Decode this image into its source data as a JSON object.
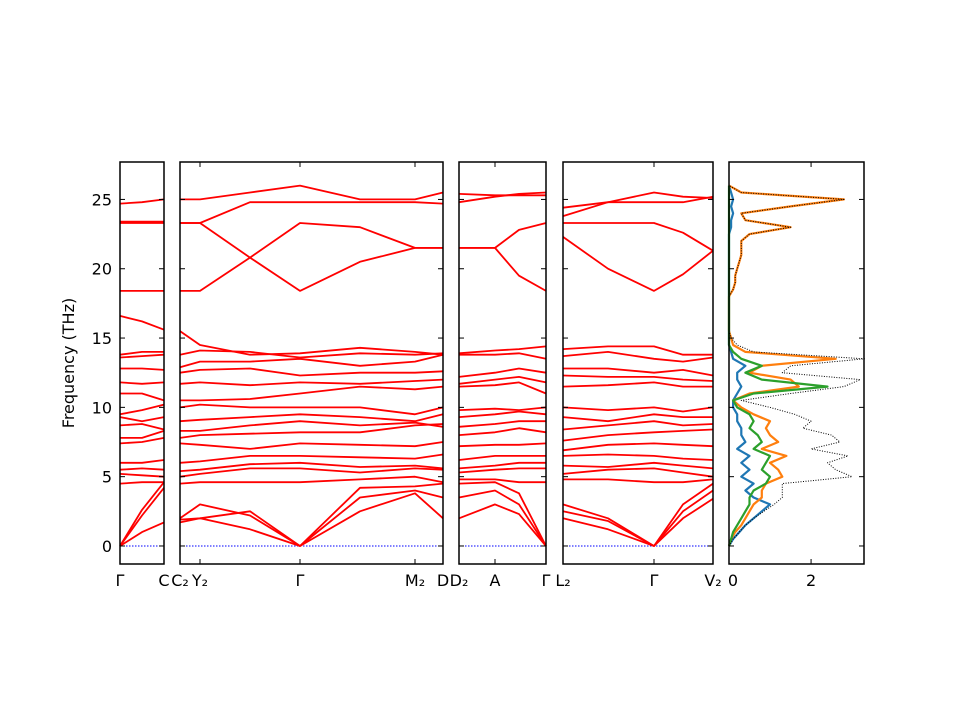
{
  "chart_data": {
    "type": "line",
    "title": "",
    "ylabel": "Frequency (THz)",
    "ylim": [
      -1.3,
      27.7
    ],
    "yticks": [
      0,
      5,
      10,
      15,
      20,
      25
    ],
    "yticklabels": [
      "0",
      "5",
      "10",
      "15",
      "20",
      "25"
    ],
    "band_color": "#ff0000",
    "zero_line_color": "#0000ff",
    "band_panels": [
      {
        "name": "gamma-c",
        "kticks": [
          0,
          0.44
        ],
        "klabels": [
          "Γ",
          "C"
        ],
        "k": [
          0,
          0.22,
          0.44
        ],
        "bands": [
          [
            0,
            1.0,
            1.7
          ],
          [
            0,
            2.2,
            4.2
          ],
          [
            0,
            2.6,
            4.6
          ],
          [
            4.5,
            4.6,
            4.6
          ],
          [
            5.2,
            5.1,
            5.0
          ],
          [
            5.5,
            5.6,
            5.5
          ],
          [
            6.0,
            6.0,
            6.2
          ],
          [
            7.4,
            7.5,
            7.8
          ],
          [
            7.8,
            7.8,
            8.3
          ],
          [
            8.7,
            8.8,
            8.4
          ],
          [
            9.3,
            9.0,
            9.3
          ],
          [
            9.5,
            9.8,
            10.2
          ],
          [
            11.0,
            11.0,
            10.5
          ],
          [
            11.8,
            11.7,
            11.8
          ],
          [
            12.8,
            12.8,
            12.7
          ],
          [
            13.6,
            13.7,
            13.8
          ],
          [
            13.8,
            14.0,
            14.0
          ],
          [
            16.6,
            16.2,
            15.6
          ],
          [
            18.4,
            18.4,
            18.4
          ],
          [
            23.3,
            23.3,
            23.3
          ],
          [
            23.4,
            23.4,
            23.4
          ],
          [
            24.7,
            24.8,
            25.0
          ]
        ]
      },
      {
        "name": "c2-y2-gamma-m2-d",
        "kticks": [
          0,
          0.2,
          1.2,
          2.35,
          2.63
        ],
        "klabels": [
          "C₂",
          "Y₂",
          "Γ",
          "M₂",
          "D"
        ],
        "k": [
          0,
          0.2,
          0.7,
          1.2,
          1.8,
          2.35,
          2.63
        ],
        "bands": [
          [
            1.7,
            2.0,
            1.2,
            0,
            2.5,
            3.8,
            2.0
          ],
          [
            1.9,
            2.0,
            2.5,
            0,
            3.5,
            4.0,
            3.5
          ],
          [
            2.0,
            3.0,
            2.2,
            0,
            4.2,
            4.3,
            4.5
          ],
          [
            4.5,
            4.6,
            4.6,
            4.6,
            4.8,
            5.0,
            4.6
          ],
          [
            5.0,
            5.2,
            5.6,
            5.6,
            5.3,
            5.6,
            5.5
          ],
          [
            5.4,
            5.5,
            5.9,
            6.0,
            5.7,
            5.8,
            5.6
          ],
          [
            6.0,
            6.1,
            6.5,
            6.5,
            6.4,
            6.3,
            6.6
          ],
          [
            7.4,
            7.3,
            7.0,
            7.4,
            7.3,
            7.2,
            7.5
          ],
          [
            7.8,
            8.0,
            8.1,
            8.2,
            8.2,
            8.7,
            8.8
          ],
          [
            8.3,
            8.3,
            8.7,
            9.0,
            8.7,
            8.9,
            8.6
          ],
          [
            9.0,
            9.1,
            9.3,
            9.5,
            9.3,
            9.0,
            9.5
          ],
          [
            10.0,
            10.2,
            10.0,
            10.0,
            10.0,
            9.5,
            10.0
          ],
          [
            10.5,
            10.5,
            10.6,
            11.0,
            11.5,
            11.3,
            11.5
          ],
          [
            11.7,
            11.8,
            11.6,
            11.8,
            11.7,
            11.9,
            12.0
          ],
          [
            12.5,
            12.7,
            12.8,
            12.3,
            12.5,
            12.5,
            12.6
          ],
          [
            12.9,
            13.3,
            13.3,
            13.5,
            13.0,
            13.3,
            13.8
          ],
          [
            13.8,
            14.1,
            14.0,
            13.6,
            13.9,
            13.8,
            13.9
          ],
          [
            15.5,
            14.5,
            13.8,
            13.9,
            14.3,
            14.0,
            13.8
          ],
          [
            18.4,
            18.4,
            20.8,
            23.3,
            23.0,
            21.5,
            21.5
          ],
          [
            23.3,
            23.3,
            20.8,
            18.4,
            20.5,
            21.5,
            21.5
          ],
          [
            23.3,
            23.3,
            24.8,
            24.8,
            24.8,
            24.8,
            24.7
          ],
          [
            25.0,
            25.0,
            25.5,
            26.0,
            25.0,
            25.0,
            25.5
          ]
        ]
      },
      {
        "name": "d2-a-gamma",
        "kticks": [
          0,
          0.36,
          0.87
        ],
        "klabels": [
          "D₂",
          "A",
          "Γ"
        ],
        "k": [
          0,
          0.36,
          0.6,
          0.87
        ],
        "bands": [
          [
            2.0,
            3.0,
            2.3,
            0
          ],
          [
            3.5,
            4.0,
            3.0,
            0
          ],
          [
            4.5,
            4.6,
            3.8,
            0
          ],
          [
            4.8,
            4.8,
            4.6,
            4.6
          ],
          [
            5.3,
            5.5,
            5.6,
            5.6
          ],
          [
            5.6,
            5.8,
            6.0,
            6.0
          ],
          [
            6.2,
            6.5,
            6.5,
            6.5
          ],
          [
            7.2,
            7.3,
            7.3,
            7.4
          ],
          [
            8.0,
            8.2,
            8.5,
            8.2
          ],
          [
            8.6,
            8.8,
            9.0,
            9.0
          ],
          [
            9.3,
            9.5,
            9.7,
            9.5
          ],
          [
            9.8,
            9.9,
            9.8,
            10.0
          ],
          [
            11.5,
            11.6,
            11.8,
            11.0
          ],
          [
            11.7,
            12.0,
            12.2,
            11.8
          ],
          [
            12.2,
            12.5,
            12.8,
            12.5
          ],
          [
            13.8,
            13.8,
            13.9,
            13.5
          ],
          [
            13.9,
            14.1,
            14.2,
            14.4
          ],
          [
            21.5,
            21.5,
            19.5,
            18.4
          ],
          [
            21.5,
            21.5,
            22.8,
            23.3
          ],
          [
            24.8,
            25.2,
            25.4,
            25.5
          ],
          [
            25.4,
            25.3,
            25.3,
            25.3
          ]
        ]
      },
      {
        "name": "l2-gamma-v2",
        "kticks": [
          0,
          0.91,
          1.5
        ],
        "klabels": [
          "L₂",
          "Γ",
          "V₂"
        ],
        "k": [
          0,
          0.45,
          0.91,
          1.2,
          1.5
        ],
        "bands": [
          [
            2.0,
            1.2,
            0,
            2.0,
            3.4
          ],
          [
            2.5,
            1.8,
            0,
            2.5,
            4.0
          ],
          [
            3.0,
            2.0,
            0,
            3.0,
            4.5
          ],
          [
            4.8,
            4.8,
            4.6,
            4.6,
            4.8
          ],
          [
            5.2,
            5.5,
            5.6,
            5.3,
            5.0
          ],
          [
            5.8,
            5.7,
            6.0,
            5.8,
            5.6
          ],
          [
            6.5,
            6.6,
            6.5,
            6.3,
            6.2
          ],
          [
            6.9,
            7.3,
            7.4,
            7.3,
            7.2
          ],
          [
            7.6,
            8.0,
            8.2,
            8.3,
            8.4
          ],
          [
            8.4,
            8.7,
            9.0,
            8.7,
            8.8
          ],
          [
            9.3,
            9.0,
            9.5,
            9.3,
            9.3
          ],
          [
            10.0,
            9.8,
            10.0,
            9.7,
            10.0
          ],
          [
            11.5,
            11.6,
            11.8,
            11.5,
            11.5
          ],
          [
            12.3,
            12.2,
            12.2,
            12.0,
            11.9
          ],
          [
            12.8,
            12.8,
            12.5,
            12.7,
            12.3
          ],
          [
            13.7,
            14.0,
            13.5,
            13.3,
            13.6
          ],
          [
            14.2,
            14.4,
            14.4,
            13.8,
            13.8
          ],
          [
            22.3,
            20.0,
            18.4,
            19.6,
            21.3
          ],
          [
            23.3,
            23.3,
            23.3,
            22.6,
            21.3
          ],
          [
            23.8,
            24.8,
            25.5,
            25.2,
            25.1
          ],
          [
            24.4,
            24.8,
            24.8,
            24.8,
            25.2
          ]
        ]
      }
    ],
    "dos": {
      "xlim": [
        0,
        3.29
      ],
      "xticks": [
        0,
        2
      ],
      "xticklabels": [
        "0",
        "2"
      ],
      "freq_start": 0,
      "freq_step": 0.5,
      "series": [
        {
          "name": "total",
          "color": "#000000",
          "style": "dotted",
          "values": [
            0,
            0.1,
            0.25,
            0.4,
            0.6,
            0.85,
            1.1,
            1.3,
            1.3,
            1.3,
            3.0,
            2.6,
            2.4,
            2.9,
            2.0,
            2.7,
            2.5,
            1.8,
            2.0,
            1.6,
            1.0,
            0.3,
            1.5,
            2.8,
            3.2,
            1.3,
            1.5,
            3.3,
            0.6,
            0.2,
            0.05,
            0,
            0,
            0,
            0,
            0,
            0,
            0.1,
            0.15,
            0.15,
            0.2,
            0.25,
            0.3,
            0.3,
            0.3,
            0.5,
            1.5,
            0.4,
            0.3,
            1.5,
            2.8,
            0.3,
            0
          ]
        },
        {
          "name": "blue",
          "color": "#1f77b4",
          "style": "solid",
          "values": [
            0,
            0.1,
            0.25,
            0.4,
            0.6,
            0.8,
            1.0,
            0.6,
            0.4,
            0.6,
            0.3,
            0.5,
            0.3,
            0.5,
            0.2,
            0.4,
            0.3,
            0.3,
            0.2,
            0.2,
            0.1,
            0.1,
            0.2,
            0.3,
            0.2,
            0.2,
            0.4,
            0.1,
            0.05,
            0,
            0,
            0,
            0,
            0,
            0,
            0,
            0,
            0,
            0,
            0,
            0,
            0,
            0,
            0,
            0,
            0,
            0.05,
            0.05,
            0.1,
            0.05,
            0.1,
            0.05,
            0
          ]
        },
        {
          "name": "orange",
          "color": "#ff7f0e",
          "style": "solid",
          "values": [
            0,
            0.05,
            0.15,
            0.3,
            0.4,
            0.5,
            0.6,
            0.8,
            0.8,
            0.9,
            1.3,
            1.2,
            1.0,
            1.4,
            0.8,
            1.2,
            1.0,
            0.9,
            1.0,
            0.6,
            0.3,
            0.1,
            0.5,
            1.7,
            1.5,
            0.5,
            0.8,
            2.6,
            0.4,
            0.1,
            0.05,
            0,
            0,
            0,
            0,
            0,
            0,
            0.1,
            0.15,
            0.15,
            0.2,
            0.25,
            0.3,
            0.3,
            0.3,
            0.5,
            1.5,
            0.4,
            0.3,
            1.5,
            2.8,
            0.3,
            0
          ]
        },
        {
          "name": "green",
          "color": "#2ca02c",
          "style": "solid",
          "values": [
            0,
            0.05,
            0.1,
            0.2,
            0.3,
            0.4,
            0.5,
            0.5,
            0.6,
            0.9,
            1.0,
            0.8,
            0.9,
            1.0,
            0.6,
            0.8,
            0.7,
            0.5,
            0.6,
            0.5,
            0.2,
            0.1,
            0.6,
            2.4,
            0.8,
            0.4,
            0.8,
            0.3,
            0.1,
            0,
            0,
            0,
            0,
            0,
            0,
            0,
            0,
            0,
            0,
            0,
            0,
            0,
            0,
            0,
            0,
            0,
            0,
            0,
            0,
            0,
            0,
            0,
            0
          ]
        }
      ]
    }
  }
}
